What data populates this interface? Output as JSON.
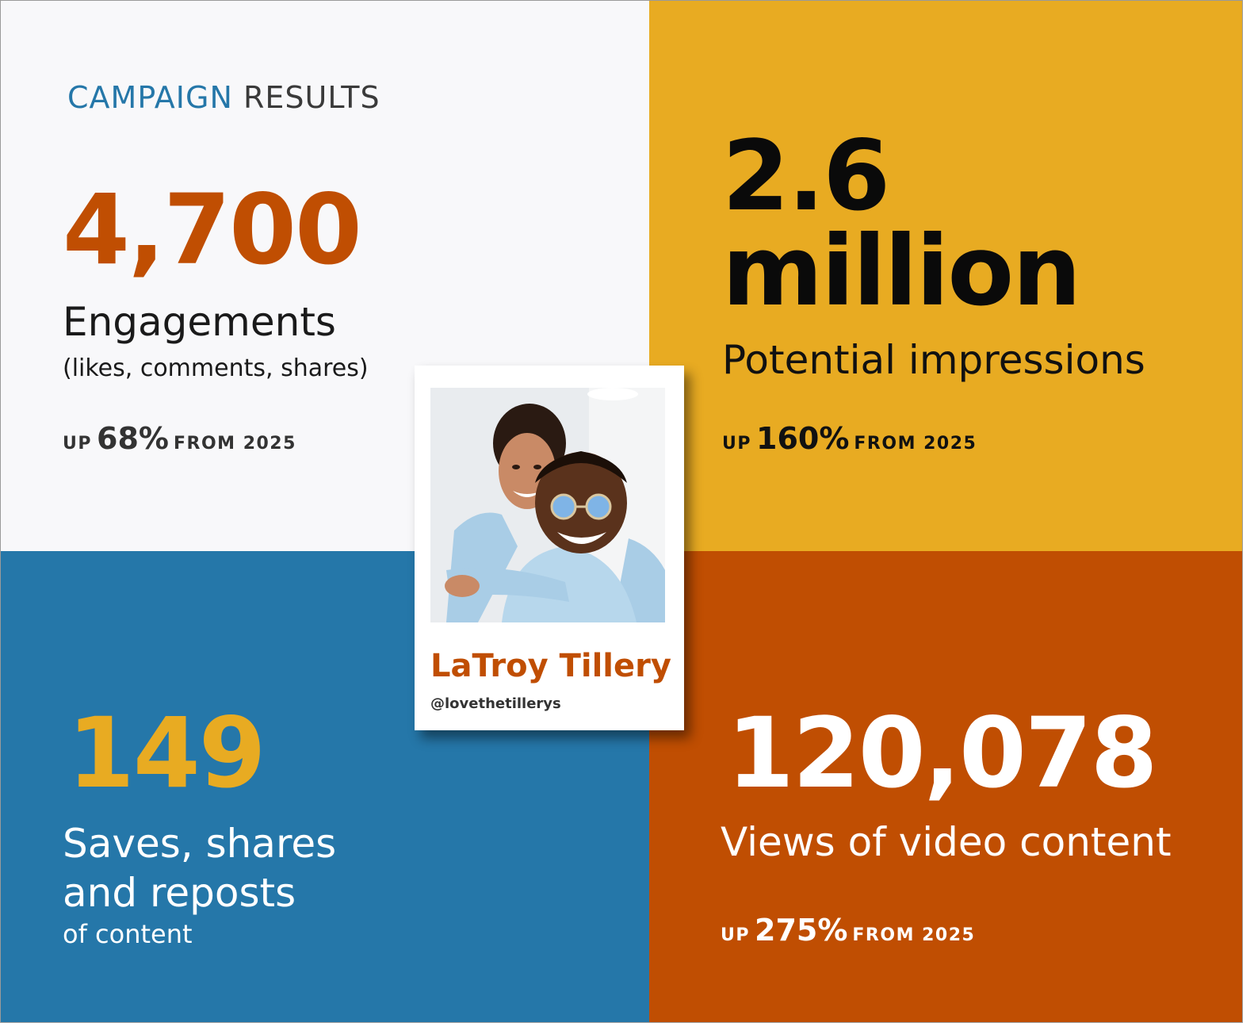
{
  "header": {
    "word1": "CAMPAIGN",
    "word2": "RESULTS"
  },
  "engagements": {
    "value": "4,700",
    "label": "Engagements",
    "sublabel": "(likes, comments, shares)",
    "up_prefix": "UP",
    "up_pct": "68%",
    "up_suffix": "FROM 2025"
  },
  "impressions": {
    "value_line1": "2.6",
    "value_line2": "million",
    "label": "Potential impressions",
    "up_prefix": "UP",
    "up_pct": "160%",
    "up_suffix": "FROM 2025"
  },
  "saves": {
    "value": "149",
    "label_line1": "Saves, shares",
    "label_line2": "and reposts",
    "sublabel": "of content"
  },
  "views": {
    "value": "120,078",
    "label": "Views of video content",
    "up_prefix": "UP",
    "up_pct": "275%",
    "up_suffix": "FROM 2025"
  },
  "profile": {
    "name": "LaTroy Tillery",
    "handle": "@lovethetillerys"
  },
  "colors": {
    "blue": "#2577a9",
    "gold": "#e8ab22",
    "orange": "#c04e02",
    "light": "#f8f8fa"
  }
}
